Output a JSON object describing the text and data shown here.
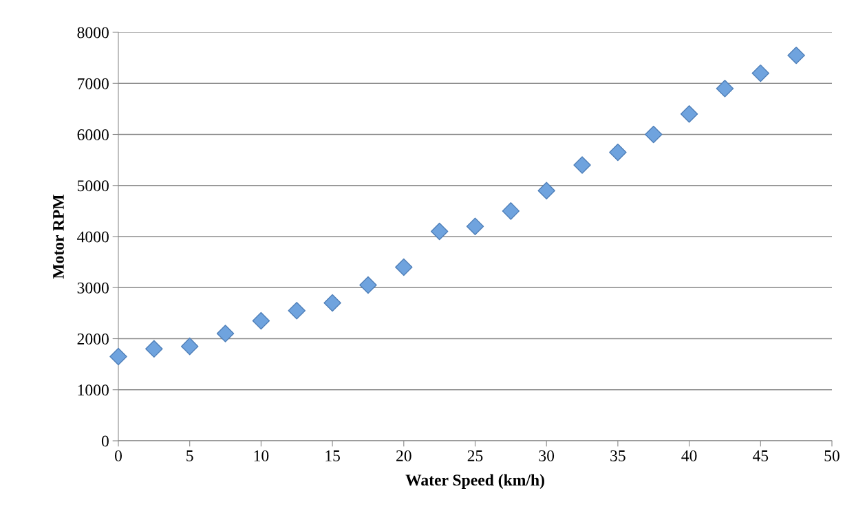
{
  "chart_data": {
    "type": "scatter",
    "xlabel": "Water Speed (km/h)",
    "ylabel": "Motor RPM",
    "x": [
      0,
      2.5,
      5,
      7.5,
      10,
      12.5,
      15,
      17.5,
      20,
      22.5,
      25,
      27.5,
      30,
      32.5,
      35,
      37.5,
      40,
      42.5,
      45,
      47.5
    ],
    "series": [
      {
        "color": "#6fa3de",
        "values": [
          1650,
          1800,
          1850,
          2100,
          2350,
          2550,
          2700,
          3050,
          3400,
          4100,
          4200,
          4500,
          4900,
          5400,
          5650,
          6000,
          6400,
          6900,
          7200,
          7550
        ]
      }
    ],
    "xlim": [
      0,
      50
    ],
    "xticks": [
      0,
      5,
      10,
      15,
      20,
      25,
      30,
      35,
      40,
      45,
      50
    ],
    "ylim": [
      0,
      8000
    ],
    "yticks": [
      0,
      1000,
      2000,
      3000,
      4000,
      5000,
      6000,
      7000,
      8000
    ],
    "grid": "y",
    "marker": "diamond"
  }
}
